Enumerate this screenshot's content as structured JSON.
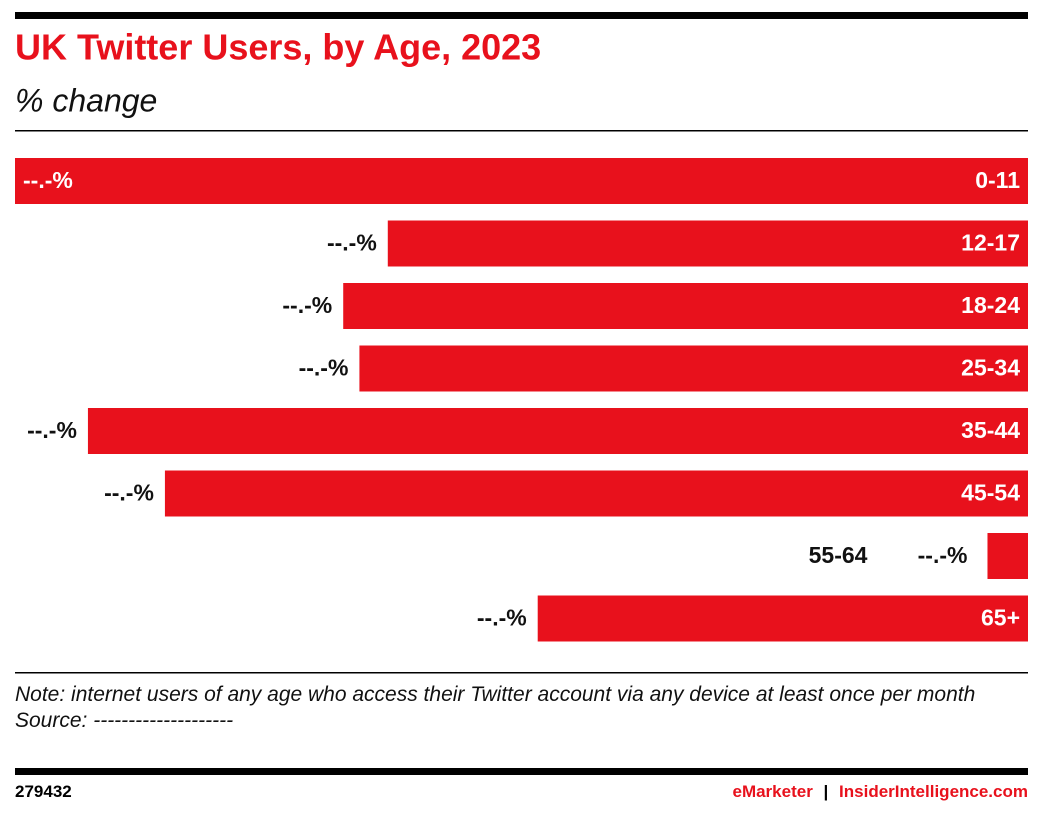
{
  "chart_data": {
    "type": "bar",
    "orientation": "horizontal",
    "title": "UK Twitter Users, by Age, 2023",
    "subtitle": "% change",
    "categories": [
      "0-11",
      "12-17",
      "18-24",
      "25-34",
      "35-44",
      "45-54",
      "55-64",
      "65+"
    ],
    "values": [
      -25.0,
      -15.8,
      -16.9,
      -16.5,
      -23.2,
      -21.3,
      -1.0,
      -12.1
    ],
    "value_labels": [
      "--.-%",
      "--.-%",
      "--.-%",
      "--.-%",
      "--.-%",
      "--.-%",
      "--.-%",
      "--.-%"
    ],
    "color": "#e8111c",
    "xlim": [
      -25,
      0
    ]
  },
  "footer": {
    "note": "Note: internet users of any age who access their Twitter account via any device at least once per month",
    "source": "Source: --------------------",
    "id": "279432",
    "brand": "eMarketer",
    "separator": "|",
    "site": "InsiderIntelligence.com"
  }
}
